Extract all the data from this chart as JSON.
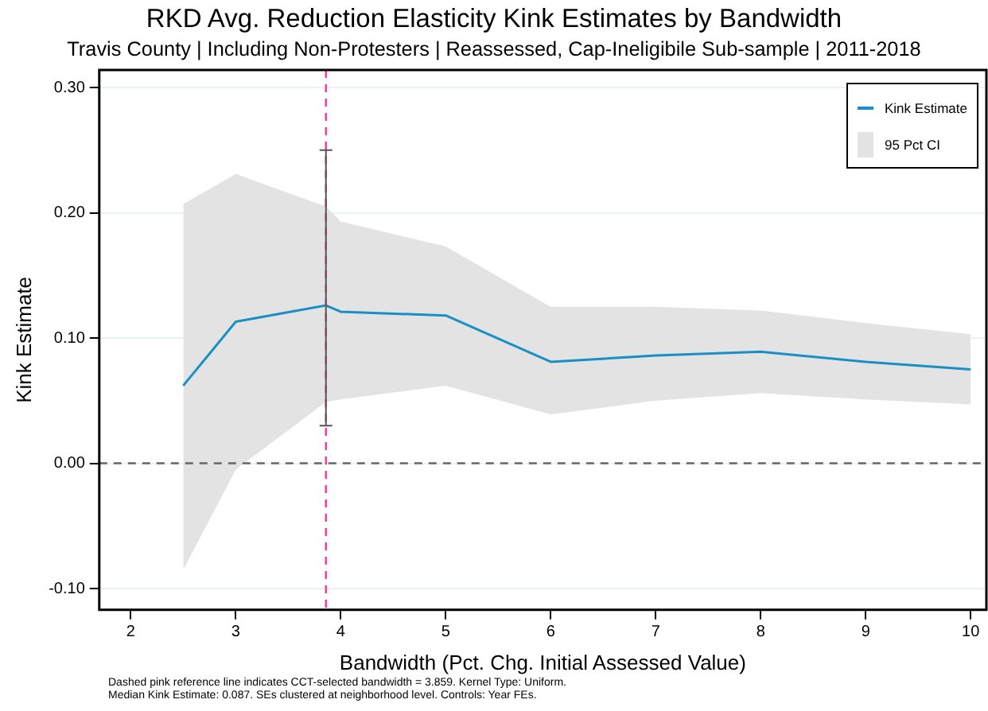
{
  "chart_data": {
    "type": "line",
    "title": "RKD Avg. Reduction Elasticity Kink Estimates by Bandwidth",
    "subtitle": "Travis County | Including Non-Protesters | Reassessed, Cap-Ineligibile Sub-sample | 2011-2018",
    "xlabel": "Bandwidth (Pct. Chg. Initial Assessed Value)",
    "ylabel": "Kink Estimate",
    "x": [
      2.5,
      3,
      3.859,
      4,
      5,
      6,
      7,
      8,
      9,
      10
    ],
    "series": [
      {
        "name": "Kink Estimate",
        "color": "#1a8fc4",
        "values": [
          0.062,
          0.113,
          0.126,
          0.121,
          0.118,
          0.081,
          0.086,
          0.089,
          0.081,
          0.075
        ],
        "errors": [
          null,
          null,
          [
            0.03,
            0.25
          ],
          null,
          null,
          null,
          null,
          null,
          null,
          null
        ],
        "lower": [
          -0.085,
          -0.005,
          0.049,
          0.051,
          0.062,
          0.039,
          0.05,
          0.056,
          0.051,
          0.047
        ],
        "upper": [
          0.207,
          0.231,
          0.205,
          0.193,
          0.173,
          0.125,
          0.125,
          0.122,
          0.112,
          0.103
        ]
      }
    ],
    "xlim": [
      1.7,
      10.15
    ],
    "ylim": [
      -0.117,
      0.314
    ],
    "xticks": [
      2,
      3,
      4,
      5,
      6,
      7,
      8,
      9,
      10
    ],
    "yticks": [
      {
        "value": -0.1,
        "label": "-0.10"
      },
      {
        "value": 0,
        "label": "0.00"
      },
      {
        "value": 0.1,
        "label": "0.10"
      },
      {
        "value": 0.2,
        "label": "0.20"
      },
      {
        "value": 0.3,
        "label": "0.30"
      }
    ],
    "ref_lines": [
      {
        "axis": "x",
        "value": 3.859,
        "color": "#ff3399",
        "line_style": "dashed"
      },
      {
        "axis": "y",
        "value": 0,
        "color": "#666666",
        "line_style": "dashed"
      }
    ],
    "grid": "y",
    "legend": "top right",
    "marker": "none",
    "annotations": [
      "95 Pct CI",
      "Dashed pink reference line indicates CCT-selected bandwidth = 3.859. Kernel Type: Uniform.",
      "Median Kink Estimate: 0.087. SEs clustered at neighborhood level. Controls: Year FEs."
    ]
  }
}
